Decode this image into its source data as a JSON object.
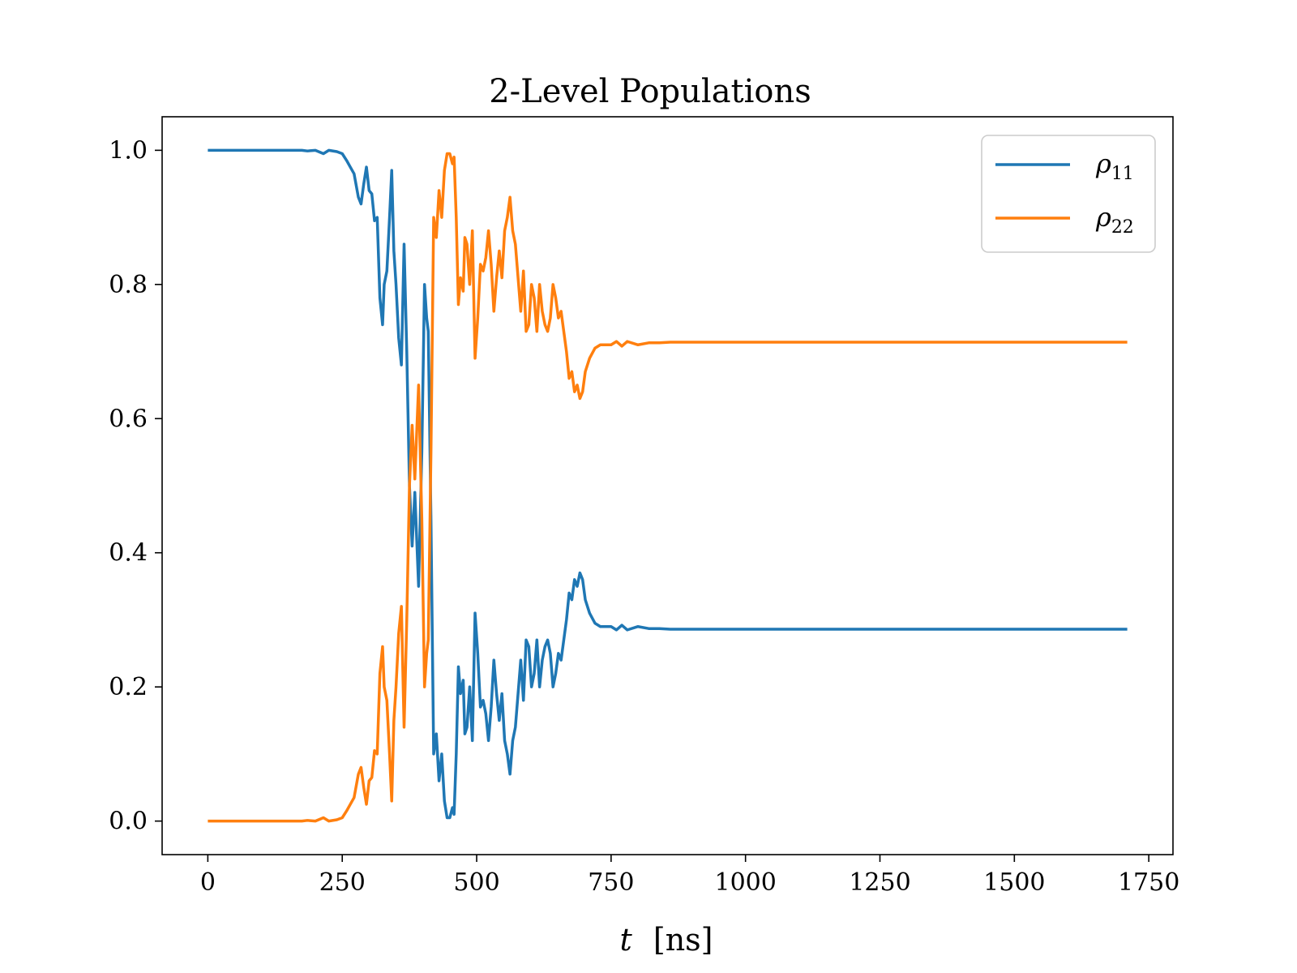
{
  "chart_data": {
    "type": "line",
    "title": "2-Level Populations",
    "xlabel_var": "t",
    "xlabel_unit": "[ns]",
    "ylabel": "",
    "xlim": [
      -85,
      1795
    ],
    "ylim": [
      -0.05,
      1.05
    ],
    "xticks": [
      0,
      250,
      500,
      750,
      1000,
      1250,
      1500,
      1750
    ],
    "xtick_labels": [
      "0",
      "250",
      "500",
      "750",
      "1000",
      "1250",
      "1500",
      "1750"
    ],
    "yticks": [
      0.0,
      0.2,
      0.4,
      0.6,
      0.8,
      1.0
    ],
    "ytick_labels": [
      "0.0",
      "0.2",
      "0.4",
      "0.6",
      "0.8",
      "1.0"
    ],
    "grid": false,
    "legend_position": "top-right",
    "series": [
      {
        "name": "ρ11",
        "legend_base": "ρ",
        "legend_sub": "11",
        "color": "#1f77b4",
        "points": [
          [
            0,
            1.0
          ],
          [
            100,
            1.0
          ],
          [
            175,
            1.0
          ],
          [
            185,
            0.999
          ],
          [
            200,
            1.0
          ],
          [
            215,
            0.995
          ],
          [
            225,
            1.0
          ],
          [
            240,
            0.998
          ],
          [
            250,
            0.995
          ],
          [
            258,
            0.985
          ],
          [
            265,
            0.975
          ],
          [
            272,
            0.965
          ],
          [
            280,
            0.93
          ],
          [
            285,
            0.92
          ],
          [
            290,
            0.95
          ],
          [
            295,
            0.975
          ],
          [
            300,
            0.94
          ],
          [
            305,
            0.935
          ],
          [
            310,
            0.895
          ],
          [
            315,
            0.9
          ],
          [
            320,
            0.78
          ],
          [
            325,
            0.74
          ],
          [
            328,
            0.8
          ],
          [
            333,
            0.82
          ],
          [
            338,
            0.9
          ],
          [
            342,
            0.97
          ],
          [
            346,
            0.85
          ],
          [
            350,
            0.8
          ],
          [
            355,
            0.72
          ],
          [
            360,
            0.68
          ],
          [
            365,
            0.86
          ],
          [
            370,
            0.7
          ],
          [
            375,
            0.5
          ],
          [
            380,
            0.41
          ],
          [
            385,
            0.49
          ],
          [
            392,
            0.35
          ],
          [
            398,
            0.55
          ],
          [
            403,
            0.8
          ],
          [
            407,
            0.75
          ],
          [
            410,
            0.73
          ],
          [
            415,
            0.45
          ],
          [
            420,
            0.1
          ],
          [
            425,
            0.13
          ],
          [
            430,
            0.06
          ],
          [
            435,
            0.1
          ],
          [
            440,
            0.03
          ],
          [
            445,
            0.005
          ],
          [
            450,
            0.005
          ],
          [
            455,
            0.02
          ],
          [
            458,
            0.01
          ],
          [
            462,
            0.1
          ],
          [
            466,
            0.23
          ],
          [
            470,
            0.19
          ],
          [
            475,
            0.21
          ],
          [
            478,
            0.13
          ],
          [
            482,
            0.14
          ],
          [
            487,
            0.2
          ],
          [
            492,
            0.12
          ],
          [
            497,
            0.31
          ],
          [
            502,
            0.25
          ],
          [
            507,
            0.17
          ],
          [
            512,
            0.18
          ],
          [
            517,
            0.16
          ],
          [
            522,
            0.12
          ],
          [
            527,
            0.17
          ],
          [
            532,
            0.24
          ],
          [
            537,
            0.19
          ],
          [
            542,
            0.15
          ],
          [
            547,
            0.19
          ],
          [
            552,
            0.12
          ],
          [
            557,
            0.1
          ],
          [
            562,
            0.07
          ],
          [
            567,
            0.12
          ],
          [
            572,
            0.14
          ],
          [
            577,
            0.19
          ],
          [
            582,
            0.24
          ],
          [
            587,
            0.18
          ],
          [
            592,
            0.27
          ],
          [
            597,
            0.26
          ],
          [
            602,
            0.2
          ],
          [
            607,
            0.22
          ],
          [
            612,
            0.27
          ],
          [
            617,
            0.2
          ],
          [
            622,
            0.24
          ],
          [
            627,
            0.26
          ],
          [
            632,
            0.27
          ],
          [
            637,
            0.25
          ],
          [
            642,
            0.2
          ],
          [
            647,
            0.22
          ],
          [
            652,
            0.25
          ],
          [
            657,
            0.24
          ],
          [
            662,
            0.27
          ],
          [
            667,
            0.3
          ],
          [
            672,
            0.34
          ],
          [
            677,
            0.33
          ],
          [
            682,
            0.36
          ],
          [
            687,
            0.35
          ],
          [
            692,
            0.37
          ],
          [
            697,
            0.36
          ],
          [
            702,
            0.33
          ],
          [
            710,
            0.31
          ],
          [
            720,
            0.295
          ],
          [
            730,
            0.29
          ],
          [
            750,
            0.29
          ],
          [
            760,
            0.285
          ],
          [
            770,
            0.292
          ],
          [
            780,
            0.285
          ],
          [
            800,
            0.29
          ],
          [
            820,
            0.287
          ],
          [
            840,
            0.287
          ],
          [
            860,
            0.286
          ],
          [
            880,
            0.286
          ],
          [
            900,
            0.286
          ],
          [
            1000,
            0.286
          ],
          [
            1200,
            0.286
          ],
          [
            1500,
            0.286
          ],
          [
            1710,
            0.286
          ]
        ]
      },
      {
        "name": "ρ22",
        "legend_base": "ρ",
        "legend_sub": "22",
        "color": "#ff7f0e",
        "points": [
          [
            0,
            0.0
          ],
          [
            100,
            0.0
          ],
          [
            175,
            0.0
          ],
          [
            185,
            0.001
          ],
          [
            200,
            0.0
          ],
          [
            215,
            0.005
          ],
          [
            225,
            0.0
          ],
          [
            240,
            0.002
          ],
          [
            250,
            0.005
          ],
          [
            258,
            0.015
          ],
          [
            265,
            0.025
          ],
          [
            272,
            0.035
          ],
          [
            280,
            0.07
          ],
          [
            285,
            0.08
          ],
          [
            290,
            0.05
          ],
          [
            295,
            0.025
          ],
          [
            300,
            0.06
          ],
          [
            305,
            0.065
          ],
          [
            310,
            0.105
          ],
          [
            315,
            0.1
          ],
          [
            320,
            0.22
          ],
          [
            325,
            0.26
          ],
          [
            328,
            0.2
          ],
          [
            333,
            0.18
          ],
          [
            338,
            0.1
          ],
          [
            342,
            0.03
          ],
          [
            346,
            0.15
          ],
          [
            350,
            0.2
          ],
          [
            355,
            0.28
          ],
          [
            360,
            0.32
          ],
          [
            365,
            0.14
          ],
          [
            370,
            0.3
          ],
          [
            375,
            0.5
          ],
          [
            380,
            0.59
          ],
          [
            385,
            0.51
          ],
          [
            392,
            0.65
          ],
          [
            398,
            0.45
          ],
          [
            403,
            0.2
          ],
          [
            407,
            0.25
          ],
          [
            410,
            0.27
          ],
          [
            415,
            0.55
          ],
          [
            420,
            0.9
          ],
          [
            425,
            0.87
          ],
          [
            430,
            0.94
          ],
          [
            435,
            0.9
          ],
          [
            440,
            0.97
          ],
          [
            445,
            0.995
          ],
          [
            450,
            0.995
          ],
          [
            455,
            0.98
          ],
          [
            458,
            0.99
          ],
          [
            462,
            0.9
          ],
          [
            466,
            0.77
          ],
          [
            470,
            0.81
          ],
          [
            475,
            0.79
          ],
          [
            478,
            0.87
          ],
          [
            482,
            0.86
          ],
          [
            487,
            0.8
          ],
          [
            492,
            0.88
          ],
          [
            497,
            0.69
          ],
          [
            502,
            0.75
          ],
          [
            507,
            0.83
          ],
          [
            512,
            0.82
          ],
          [
            517,
            0.84
          ],
          [
            522,
            0.88
          ],
          [
            527,
            0.83
          ],
          [
            532,
            0.76
          ],
          [
            537,
            0.81
          ],
          [
            542,
            0.85
          ],
          [
            547,
            0.81
          ],
          [
            552,
            0.88
          ],
          [
            557,
            0.9
          ],
          [
            562,
            0.93
          ],
          [
            567,
            0.88
          ],
          [
            572,
            0.86
          ],
          [
            577,
            0.81
          ],
          [
            582,
            0.76
          ],
          [
            587,
            0.82
          ],
          [
            592,
            0.73
          ],
          [
            597,
            0.74
          ],
          [
            602,
            0.8
          ],
          [
            607,
            0.78
          ],
          [
            612,
            0.73
          ],
          [
            617,
            0.8
          ],
          [
            622,
            0.76
          ],
          [
            627,
            0.74
          ],
          [
            632,
            0.73
          ],
          [
            637,
            0.75
          ],
          [
            642,
            0.8
          ],
          [
            647,
            0.78
          ],
          [
            652,
            0.75
          ],
          [
            657,
            0.76
          ],
          [
            662,
            0.73
          ],
          [
            667,
            0.7
          ],
          [
            672,
            0.66
          ],
          [
            677,
            0.67
          ],
          [
            682,
            0.64
          ],
          [
            687,
            0.65
          ],
          [
            692,
            0.63
          ],
          [
            697,
            0.64
          ],
          [
            702,
            0.67
          ],
          [
            710,
            0.69
          ],
          [
            720,
            0.705
          ],
          [
            730,
            0.71
          ],
          [
            750,
            0.71
          ],
          [
            760,
            0.715
          ],
          [
            770,
            0.708
          ],
          [
            780,
            0.715
          ],
          [
            800,
            0.71
          ],
          [
            820,
            0.713
          ],
          [
            840,
            0.713
          ],
          [
            860,
            0.714
          ],
          [
            880,
            0.714
          ],
          [
            900,
            0.714
          ],
          [
            1000,
            0.714
          ],
          [
            1200,
            0.714
          ],
          [
            1500,
            0.714
          ],
          [
            1710,
            0.714
          ]
        ]
      }
    ]
  }
}
